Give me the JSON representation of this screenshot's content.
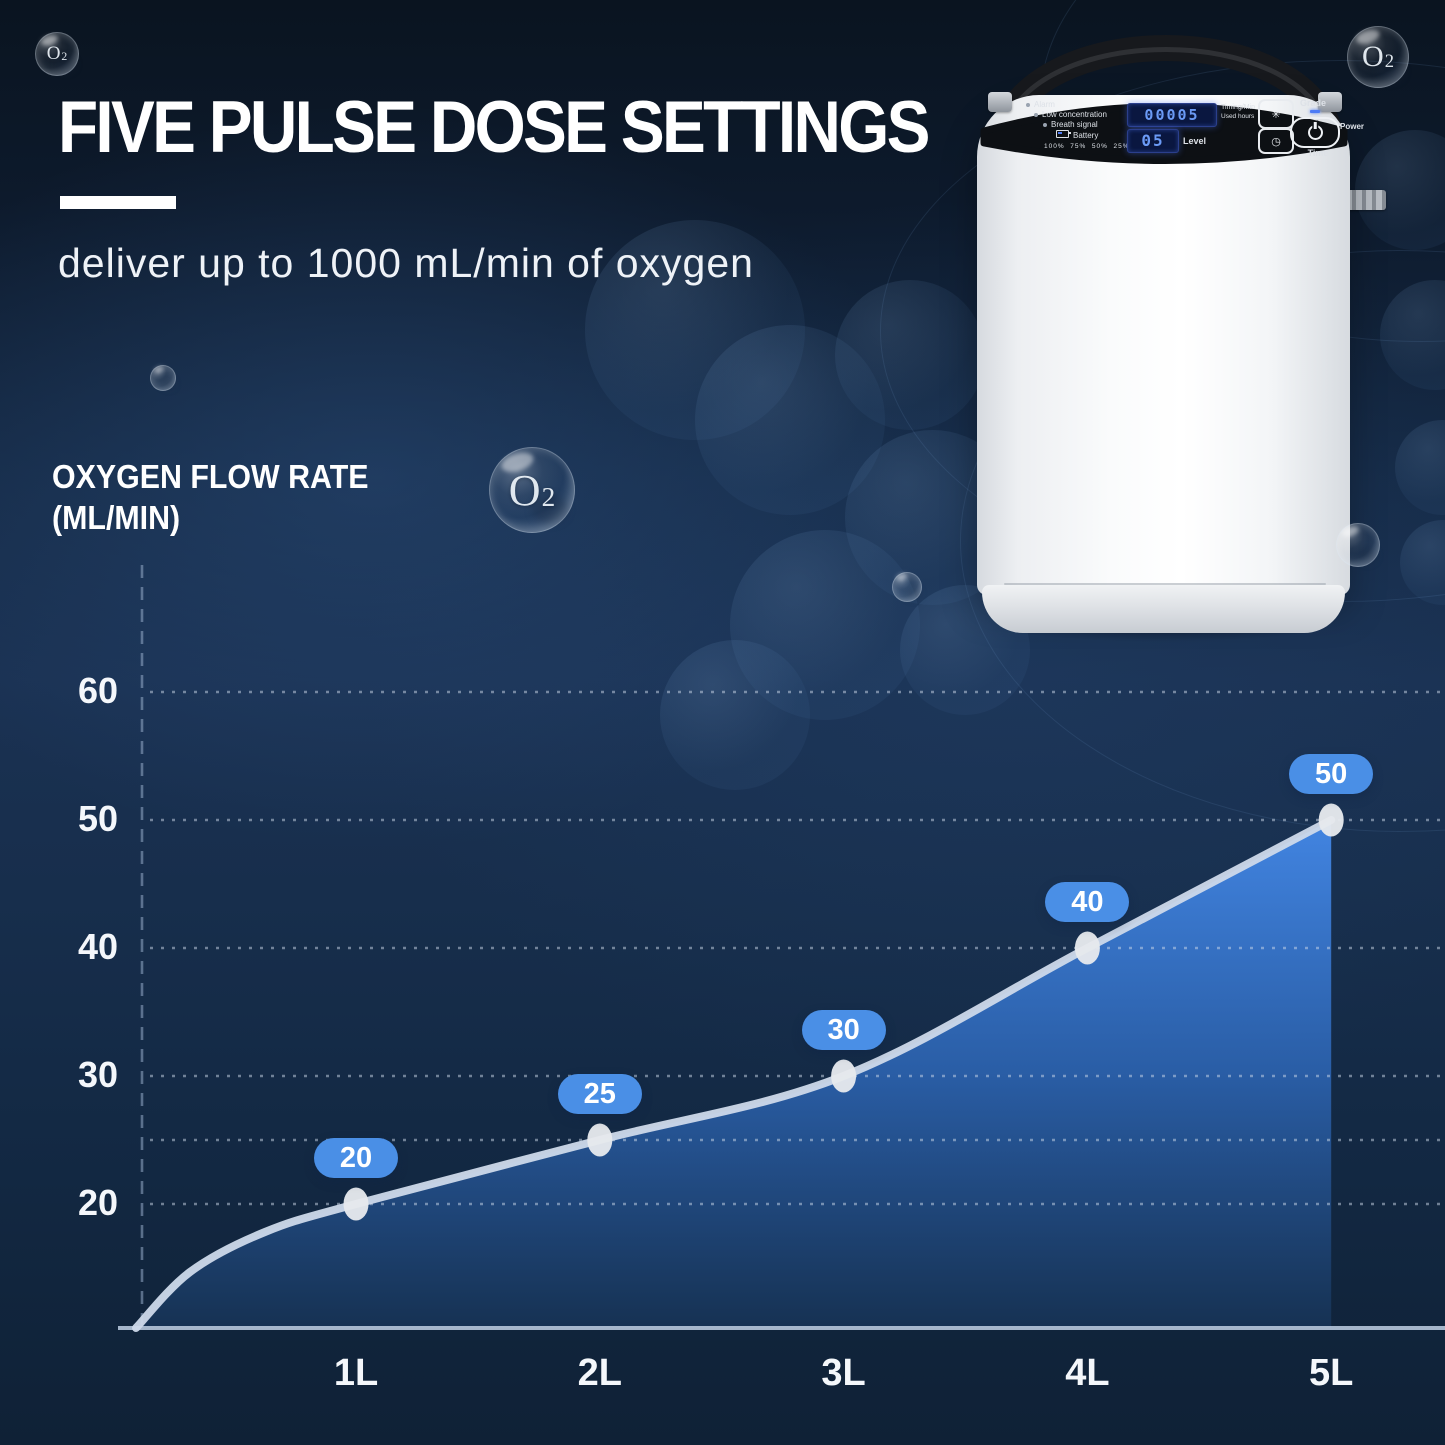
{
  "header": {
    "title": "FIVE PULSE DOSE SETTINGS",
    "subtitle": "deliver up to 1000 mL/min of oxygen"
  },
  "chart_data": {
    "type": "area",
    "title": "OXYGEN FLOW RATE (ML/MIN)",
    "ylabel_line1": "OXYGEN FLOW RATE",
    "ylabel_line2": "(ML/MIN)",
    "categories": [
      "1L",
      "2L",
      "3L",
      "4L",
      "5L"
    ],
    "values": [
      20,
      25,
      30,
      40,
      50
    ],
    "data_labels": [
      "20",
      "25",
      "30",
      "40",
      "50"
    ],
    "yticks": [
      20,
      30,
      40,
      50,
      60
    ],
    "gridline_values": [
      20,
      25,
      30,
      40,
      50,
      60
    ],
    "ylim": [
      10,
      65
    ],
    "grid": true,
    "legend": false
  },
  "decorations": {
    "o2_main": "O",
    "o2_sub": "2"
  },
  "device": {
    "panel": {
      "indicators": [
        "Alarm",
        "Low concentration",
        "Breath signal",
        "Battery"
      ],
      "battery_levels": [
        "100%",
        "75%",
        "50%",
        "25%"
      ],
      "display_value": "00005",
      "level_value": "05",
      "level_label": "Level",
      "timing_label": "Timing/Min",
      "hours_label": "Used hours",
      "grade_label": "Grade",
      "power_label": "Power",
      "time_label": "Time"
    }
  },
  "colors": {
    "accent": "#4a8fe6",
    "area_top": "#4489e9",
    "area_mid": "#2c63b0",
    "area_bottom": "#173457",
    "curve_line": "#cdd9ea",
    "gridline": "#cdd9ea",
    "baseline": "#b6c6dc",
    "marker": "#e6e9ed"
  }
}
